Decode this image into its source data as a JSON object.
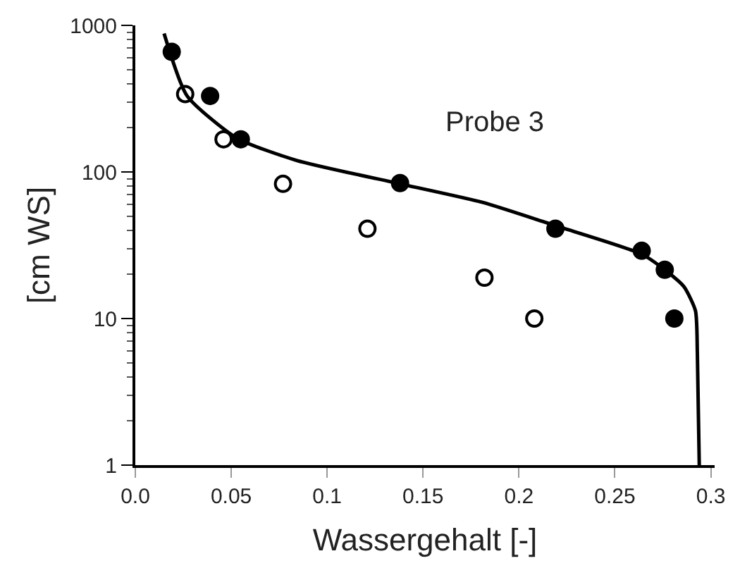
{
  "chart_data": {
    "type": "scatter",
    "xlabel": "Wassergehalt [-]",
    "ylabel": "[cm WS]",
    "annotations": [
      "Probe 3"
    ],
    "log": "y",
    "xlim": [
      0,
      0.302
    ],
    "ylim": [
      1,
      1000
    ],
    "xticks": [
      {
        "value": 0,
        "label": "0.0"
      },
      0.05,
      0.1,
      0.15,
      0.2,
      0.25,
      0.3
    ],
    "yticks": [
      1,
      10,
      100,
      1000
    ],
    "series": [
      {
        "marker": "circle",
        "color": "#000000",
        "x": [
          0.019,
          0.039,
          0.055,
          0.138,
          0.219,
          0.264,
          0.276,
          0.281
        ],
        "values": [
          660,
          330,
          167,
          84,
          41,
          29,
          21.5,
          10
        ]
      },
      {
        "marker": "circle",
        "color": "#ffffff",
        "x": [
          0.026,
          0.046,
          0.077,
          0.121,
          0.182,
          0.208
        ],
        "values": [
          340,
          167,
          83,
          41,
          19,
          10
        ]
      },
      {
        "type": "line",
        "marker": "none",
        "line_style": "solid",
        "color": "#000000",
        "x": [
          0.015,
          0.027,
          0.053,
          0.084,
          0.138,
          0.181,
          0.219,
          0.264,
          0.277,
          0.286,
          0.292,
          0.293,
          0.294
        ],
        "values": [
          880,
          330,
          170,
          120,
          83,
          62,
          43,
          27.5,
          21,
          16.5,
          11.3,
          5.8,
          1
        ]
      }
    ]
  }
}
